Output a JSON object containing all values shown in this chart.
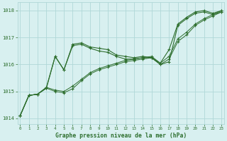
{
  "title": "Graphe pression niveau de la mer (hPa)",
  "bg_color": "#d8f0f0",
  "grid_color": "#b0d8d8",
  "line_color": "#2d6e2d",
  "ylim": [
    1013.8,
    1018.3
  ],
  "xlim": [
    -0.3,
    23.3
  ],
  "yticks": [
    1014,
    1015,
    1016,
    1017,
    1018
  ],
  "xticks": [
    0,
    1,
    2,
    3,
    4,
    5,
    6,
    7,
    8,
    9,
    10,
    11,
    12,
    13,
    14,
    15,
    16,
    17,
    18,
    19,
    20,
    21,
    22,
    23
  ],
  "series_wavy": [
    1014.1,
    1014.85,
    1014.9,
    1015.15,
    1016.3,
    1015.8,
    1016.75,
    1016.8,
    1016.65,
    1016.6,
    1016.55,
    1016.35,
    1016.3,
    1016.25,
    1016.3,
    1016.25,
    1016.05,
    1016.55,
    1017.5,
    1017.75,
    1017.95,
    1018.0,
    1017.9,
    1018.0
  ],
  "series_mid1": [
    1014.1,
    1014.85,
    1014.9,
    1015.15,
    1015.05,
    1015.0,
    1015.2,
    1015.45,
    1015.7,
    1015.85,
    1015.95,
    1016.05,
    1016.15,
    1016.2,
    1016.25,
    1016.3,
    1016.05,
    1016.3,
    1016.95,
    1017.2,
    1017.5,
    1017.7,
    1017.85,
    1018.0
  ],
  "series_mid2": [
    1014.1,
    1014.85,
    1014.9,
    1015.12,
    1015.0,
    1014.95,
    1015.1,
    1015.4,
    1015.65,
    1015.8,
    1015.9,
    1016.0,
    1016.1,
    1016.15,
    1016.2,
    1016.25,
    1016.0,
    1016.2,
    1016.85,
    1017.1,
    1017.45,
    1017.65,
    1017.8,
    1017.95
  ],
  "series_dip": [
    1014.1,
    1014.85,
    1014.9,
    1015.12,
    1016.3,
    1015.8,
    1016.7,
    1016.75,
    1016.6,
    1016.5,
    1016.45,
    1016.3,
    1016.2,
    1016.2,
    1016.25,
    1016.25,
    1016.0,
    1016.1,
    1017.45,
    1017.7,
    1017.9,
    1017.95,
    1017.85,
    1017.95
  ],
  "marker_x": [
    0,
    1,
    2,
    3,
    4,
    5,
    6,
    7,
    8,
    9,
    10,
    11,
    12,
    13,
    14,
    15,
    16,
    17,
    18,
    19,
    20,
    21,
    22,
    23
  ]
}
